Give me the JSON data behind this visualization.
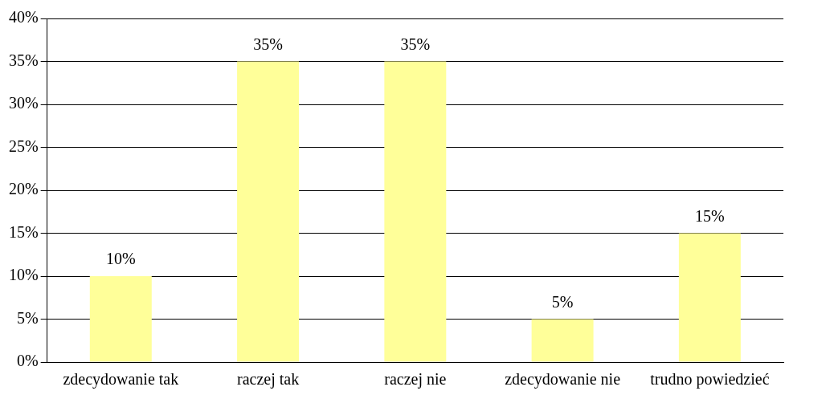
{
  "chart_data": {
    "type": "bar",
    "categories": [
      "zdecydowanie tak",
      "raczej tak",
      "raczej nie",
      "zdecydowanie nie",
      "trudno powiedzieć"
    ],
    "values": [
      10,
      35,
      35,
      5,
      15
    ],
    "color": "#ffff99",
    "value_labels": [
      "10%",
      "35%",
      "35%",
      "5%",
      "15%"
    ],
    "ylim": [
      0,
      40
    ],
    "yticks": [
      {
        "value": 0,
        "label": "0%"
      },
      {
        "value": 5,
        "label": "5%"
      },
      {
        "value": 10,
        "label": "10%"
      },
      {
        "value": 15,
        "label": "15%"
      },
      {
        "value": 20,
        "label": "20%"
      },
      {
        "value": 25,
        "label": "25%"
      },
      {
        "value": 30,
        "label": "30%"
      },
      {
        "value": 35,
        "label": "35%"
      },
      {
        "value": 40,
        "label": "40%"
      }
    ],
    "grid": "y",
    "legend": false
  }
}
